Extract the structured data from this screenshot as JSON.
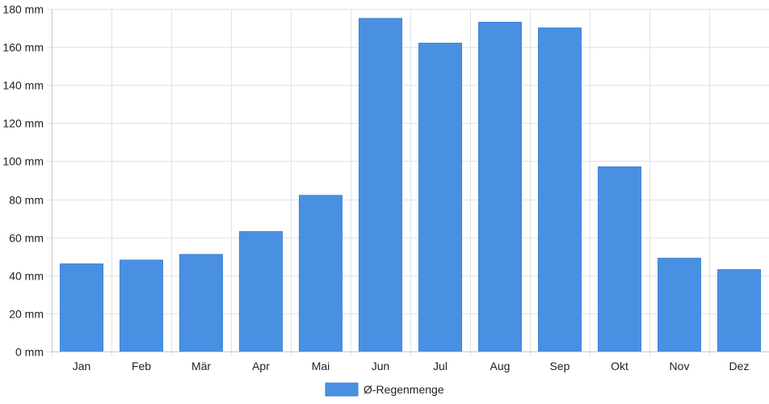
{
  "chart_data": {
    "type": "bar",
    "categories": [
      "Jan",
      "Feb",
      "Mär",
      "Apr",
      "Mai",
      "Jun",
      "Jul",
      "Aug",
      "Sep",
      "Okt",
      "Nov",
      "Dez"
    ],
    "series": [
      {
        "name": "Ø-Regenmenge",
        "values": [
          46,
          48,
          51,
          63,
          82,
          175,
          162,
          173,
          170,
          97,
          49,
          43
        ],
        "color": "#4a90e2"
      }
    ],
    "ylim": [
      0,
      180
    ],
    "yticks": [
      0,
      20,
      40,
      60,
      80,
      100,
      120,
      140,
      160,
      180
    ],
    "y_unit": "mm",
    "grid": true,
    "legend_position": "bottom"
  }
}
